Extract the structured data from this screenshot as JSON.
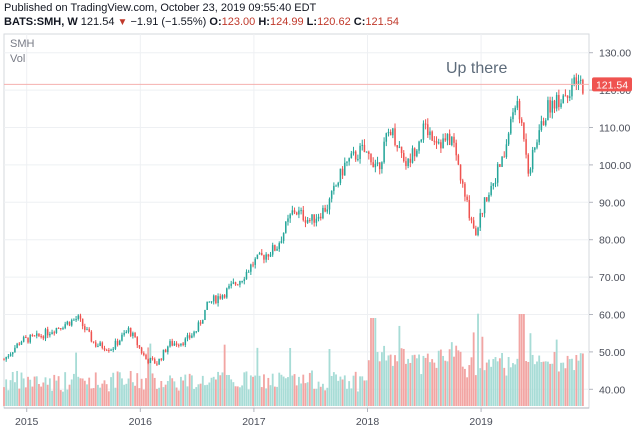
{
  "header": {
    "published": "Published on TradingView.com, October 23, 2019 09:55:40 EDT",
    "symbol": "BATS:SMH, W",
    "last": "121.54",
    "change": "−1.91 (−1.55%)",
    "open_label": "O:",
    "open": "123.00",
    "high_label": "H:",
    "high": "124.99",
    "low_label": "L:",
    "low": "120.62",
    "close_label": "C:",
    "close": "121.54"
  },
  "colors": {
    "up": "#26a69a",
    "down": "#ef5350",
    "vol_up": "#a7dcd6",
    "vol_down": "#f2a5a3",
    "price_tag": "#ef5350"
  },
  "chart_data": {
    "type": "candlestick",
    "legend_top": "SMH",
    "legend_sub": "Vol",
    "annotation": "Up there",
    "last_price_tag": "121.54",
    "ylim": [
      35,
      135
    ],
    "yticks": [
      "130.00",
      "120.00",
      "110.00",
      "100.00",
      "90.00",
      "80.00",
      "70.00",
      "60.00",
      "50.00",
      "40.00"
    ],
    "ytick_values": [
      130,
      120,
      110,
      100,
      90,
      80,
      70,
      60,
      50,
      40
    ],
    "xticks": [
      "2015",
      "2016",
      "2017",
      "2018",
      "2019"
    ],
    "xtick_years": [
      2015,
      2016,
      2017,
      2018,
      2019
    ],
    "x_start": 2014.8,
    "x_end": 2019.95,
    "anchors": [
      [
        2014.8,
        48
      ],
      [
        2014.95,
        53
      ],
      [
        2015.1,
        54
      ],
      [
        2015.3,
        57
      ],
      [
        2015.45,
        59
      ],
      [
        2015.6,
        52
      ],
      [
        2015.75,
        51
      ],
      [
        2015.9,
        56
      ],
      [
        2016.05,
        48
      ],
      [
        2016.15,
        47
      ],
      [
        2016.25,
        52
      ],
      [
        2016.4,
        53
      ],
      [
        2016.5,
        56
      ],
      [
        2016.6,
        63
      ],
      [
        2016.75,
        66
      ],
      [
        2016.9,
        70
      ],
      [
        2017.0,
        74
      ],
      [
        2017.2,
        78
      ],
      [
        2017.35,
        88
      ],
      [
        2017.5,
        85
      ],
      [
        2017.65,
        89
      ],
      [
        2017.8,
        100
      ],
      [
        2017.95,
        104
      ],
      [
        2018.1,
        100
      ],
      [
        2018.2,
        110
      ],
      [
        2018.35,
        100
      ],
      [
        2018.5,
        110
      ],
      [
        2018.65,
        106
      ],
      [
        2018.75,
        107
      ],
      [
        2018.85,
        92
      ],
      [
        2018.95,
        82
      ],
      [
        2019.05,
        92
      ],
      [
        2019.2,
        102
      ],
      [
        2019.3,
        117
      ],
      [
        2019.38,
        108
      ],
      [
        2019.42,
        98
      ],
      [
        2019.5,
        108
      ],
      [
        2019.6,
        116
      ],
      [
        2019.7,
        118
      ],
      [
        2019.8,
        121
      ],
      [
        2019.88,
        121.5
      ]
    ],
    "volume_scale_note": "volume bars read visually",
    "volume_ylim": [
      0,
      100
    ]
  }
}
